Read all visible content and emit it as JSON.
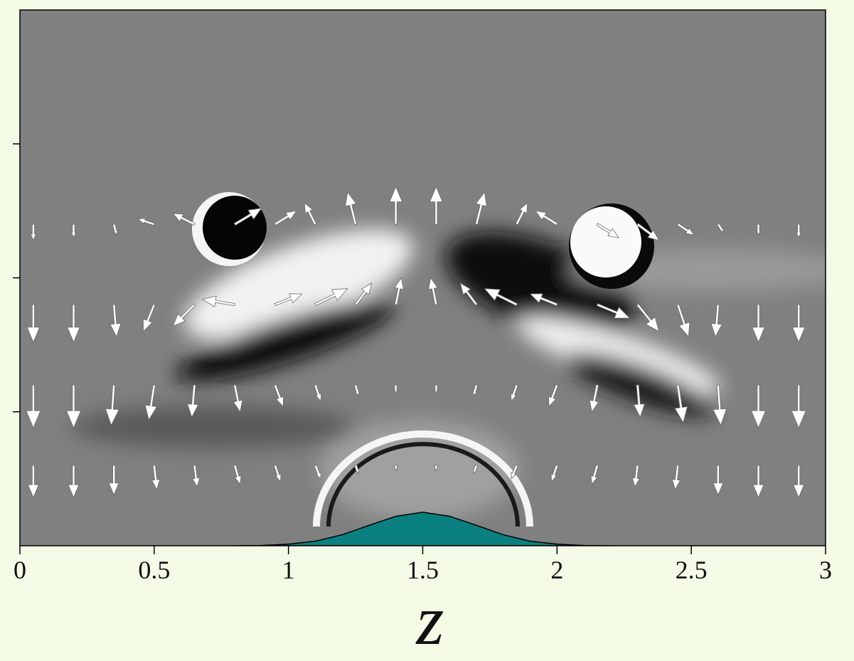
{
  "chart_data": {
    "type": "quiver",
    "xlabel": "z",
    "xlim": [
      0,
      3
    ],
    "xticks": [
      0,
      0.5,
      1,
      1.5,
      2,
      2.5,
      3
    ],
    "ylim": [
      0,
      2
    ],
    "yticks": [
      0.5,
      1,
      1.5
    ],
    "arrow_color": "#ffffff",
    "bump": {
      "color": "#0a8080",
      "x": [
        0.8,
        0.9,
        1.0,
        1.1,
        1.2,
        1.3,
        1.4,
        1.5,
        1.6,
        1.7,
        1.8,
        1.9,
        2.0,
        2.1,
        2.2
      ],
      "y": [
        0,
        0.001,
        0.006,
        0.017,
        0.041,
        0.076,
        0.11,
        0.125,
        0.11,
        0.076,
        0.041,
        0.017,
        0.006,
        0.001,
        0
      ]
    },
    "quiver": {
      "x": [
        0.05,
        0.2,
        0.35,
        0.5,
        0.65,
        0.8,
        0.95,
        1.1,
        1.25,
        1.4,
        1.55,
        1.7,
        1.85,
        2.0,
        2.15,
        2.3,
        2.45,
        2.6,
        2.75,
        2.9,
        0.05,
        0.2,
        0.35,
        0.5,
        0.65,
        0.8,
        0.95,
        1.1,
        1.25,
        1.4,
        1.55,
        1.7,
        1.85,
        2.0,
        2.15,
        2.3,
        2.45,
        2.6,
        2.75,
        2.9,
        0.05,
        0.2,
        0.35,
        0.5,
        0.65,
        0.8,
        0.95,
        1.1,
        1.25,
        1.4,
        1.55,
        1.7,
        1.85,
        2.0,
        2.15,
        2.3,
        2.45,
        2.6,
        2.75,
        2.9,
        0.05,
        0.2,
        0.35,
        0.5,
        0.65,
        0.8,
        0.95,
        1.1,
        1.25,
        1.4,
        1.55,
        1.7,
        1.85,
        2.0,
        2.15,
        2.3,
        2.45,
        2.6,
        2.75,
        2.9
      ],
      "y": [
        0.3,
        0.3,
        0.3,
        0.3,
        0.3,
        0.3,
        0.3,
        0.3,
        0.3,
        0.3,
        0.3,
        0.3,
        0.3,
        0.3,
        0.3,
        0.3,
        0.3,
        0.3,
        0.3,
        0.3,
        0.6,
        0.6,
        0.6,
        0.6,
        0.6,
        0.6,
        0.6,
        0.6,
        0.6,
        0.6,
        0.6,
        0.6,
        0.6,
        0.6,
        0.6,
        0.6,
        0.6,
        0.6,
        0.6,
        0.6,
        0.9,
        0.9,
        0.9,
        0.9,
        0.9,
        0.9,
        0.9,
        0.9,
        0.9,
        0.9,
        0.9,
        0.9,
        0.9,
        0.9,
        0.9,
        0.9,
        0.9,
        0.9,
        0.9,
        0.9,
        1.2,
        1.2,
        1.2,
        1.2,
        1.2,
        1.2,
        1.2,
        1.2,
        1.2,
        1.2,
        1.2,
        1.2,
        1.2,
        1.2,
        1.2,
        1.2,
        1.2,
        1.2,
        1.2,
        1.2
      ],
      "u": [
        0,
        0,
        0,
        0.01,
        0.01,
        0.02,
        0.02,
        0.02,
        0.01,
        0,
        0,
        -0.01,
        -0.02,
        -0.02,
        -0.02,
        -0.01,
        -0.01,
        0,
        0,
        0,
        0,
        0,
        -0.01,
        -0.02,
        -0.01,
        0.02,
        0.03,
        0.02,
        0.01,
        0,
        0,
        -0.01,
        -0.02,
        -0.03,
        -0.02,
        0.01,
        0.02,
        0.01,
        0,
        0,
        0,
        0,
        0.01,
        -0.04,
        -0.08,
        -0.12,
        0.1,
        0.12,
        0.06,
        0.02,
        -0.02,
        -0.06,
        -0.12,
        -0.1,
        0.12,
        0.08,
        0.04,
        -0.01,
        0,
        0,
        0,
        0,
        0.01,
        -0.06,
        -0.08,
        0.1,
        0.08,
        -0.04,
        -0.03,
        0,
        0,
        0.03,
        0.04,
        -0.08,
        0.08,
        0.08,
        0.06,
        0.02,
        0,
        0
      ],
      "v": [
        -0.12,
        -0.12,
        -0.11,
        -0.09,
        -0.08,
        -0.07,
        -0.06,
        -0.05,
        -0.03,
        -0.02,
        -0.02,
        -0.03,
        -0.05,
        -0.06,
        -0.07,
        -0.08,
        -0.09,
        -0.11,
        -0.12,
        -0.12,
        -0.16,
        -0.16,
        -0.15,
        -0.13,
        -0.12,
        -0.1,
        -0.08,
        -0.06,
        -0.04,
        -0.03,
        -0.03,
        -0.04,
        -0.06,
        -0.08,
        -0.1,
        -0.12,
        -0.14,
        -0.15,
        -0.16,
        -0.16,
        -0.14,
        -0.14,
        -0.12,
        -0.1,
        -0.08,
        0.02,
        0.04,
        0.06,
        0.08,
        0.1,
        0.1,
        0.08,
        0.06,
        0.04,
        -0.05,
        -0.1,
        -0.12,
        -0.12,
        -0.14,
        -0.14,
        -0.06,
        -0.05,
        -0.04,
        0.02,
        0.04,
        0.06,
        0.05,
        0.08,
        0.12,
        0.14,
        0.14,
        0.12,
        0.08,
        0.05,
        -0.05,
        -0.06,
        -0.04,
        -0.03,
        -0.04,
        -0.05
      ]
    }
  }
}
